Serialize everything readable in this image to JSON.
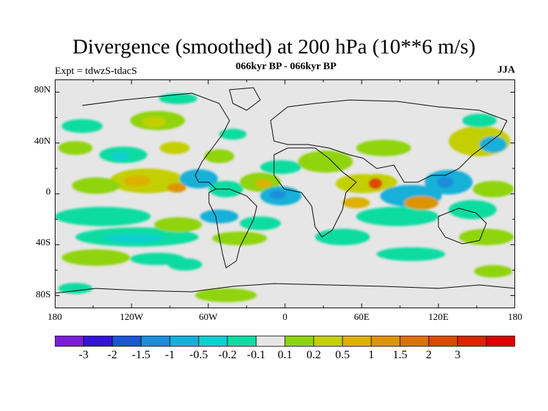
{
  "title": "Divergence (smoothed) at 200 hPa (10**6 m/s)",
  "subtitle": "066kyr BP - 066kyr BP",
  "experiment": "Expt = tdwzS-tdacS",
  "season": "JJA",
  "lat_ticks": [
    "80N",
    "40N",
    "0",
    "40S",
    "80S"
  ],
  "lon_ticks": [
    "180",
    "120W",
    "60W",
    "0",
    "60E",
    "120E",
    "180"
  ],
  "colorbar": {
    "colors": [
      "#7a1fd6",
      "#3414d6",
      "#1b55cf",
      "#1c8cdb",
      "#12b0d8",
      "#0ccfd0",
      "#10dca0",
      "#e6e6e6",
      "#8fd40e",
      "#c4cf06",
      "#dcb100",
      "#dc9400",
      "#dc7000",
      "#dc4a00",
      "#dc2400",
      "#dc0000"
    ],
    "labels": [
      "-3",
      "-2",
      "-1.5",
      "-1",
      "-0.5",
      "-0.2",
      "-0.1",
      "0.1",
      "0.2",
      "0.5",
      "1",
      "1.5",
      "2",
      "3"
    ]
  },
  "map": {
    "background_color": "#e6e6e6",
    "lon_range": [
      -180,
      180
    ],
    "lat_range": [
      -90,
      90
    ],
    "projection": "cylindrical-equidistant"
  }
}
